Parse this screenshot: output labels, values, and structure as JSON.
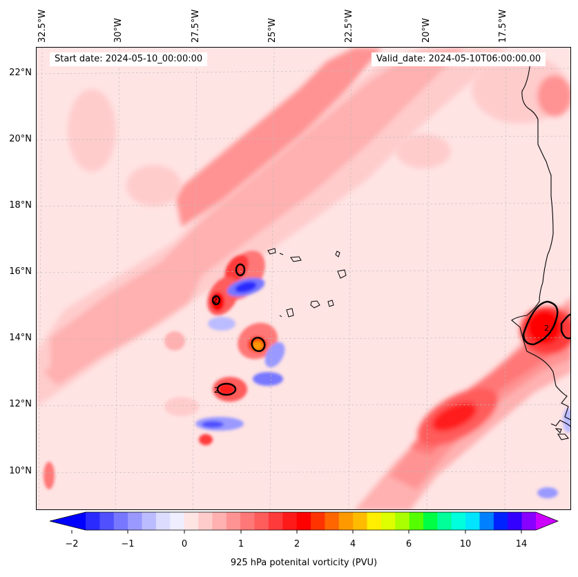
{
  "header": {
    "start_date": "Start date: 2024-05-10_00:00:00",
    "valid_date": "Valid_date: 2024-05-10T06:00:00.00"
  },
  "axes": {
    "lon_labels": [
      "32.5°W",
      "30°W",
      "27.5°W",
      "25°W",
      "22.5°W",
      "20°W",
      "17.5°W"
    ],
    "lat_labels": [
      "22°N",
      "20°N",
      "18°N",
      "16°N",
      "14°N",
      "12°N",
      "10°N"
    ]
  },
  "colorbar": {
    "label": "925 hPa potenital vorticity (PVU)",
    "ticks": [
      "−2",
      "−1",
      "0",
      "1",
      "2",
      "4",
      "6",
      "10",
      "14"
    ],
    "colors": [
      "#0000ff",
      "#2a2aff",
      "#5050ff",
      "#7777ff",
      "#9999ff",
      "#bbbbff",
      "#dcdcff",
      "#eeeeff",
      "#ffe4e4",
      "#ffcccc",
      "#ffb0b0",
      "#ff9393",
      "#ff7777",
      "#ff5c5c",
      "#ff3a3a",
      "#ff1a1a",
      "#ff0000",
      "#ff3300",
      "#ff6600",
      "#ff9900",
      "#ffbb00",
      "#ffee00",
      "#ddff00",
      "#aaff00",
      "#55ff00",
      "#00ff44",
      "#00ff99",
      "#00ffdd",
      "#00e5ff",
      "#0080ff",
      "#0022ff",
      "#3300ff",
      "#8800ff",
      "#cc00ff"
    ]
  },
  "map": {
    "background_color": "#ffe4e4",
    "contour_label": "2",
    "coastline_color": "#000000"
  }
}
